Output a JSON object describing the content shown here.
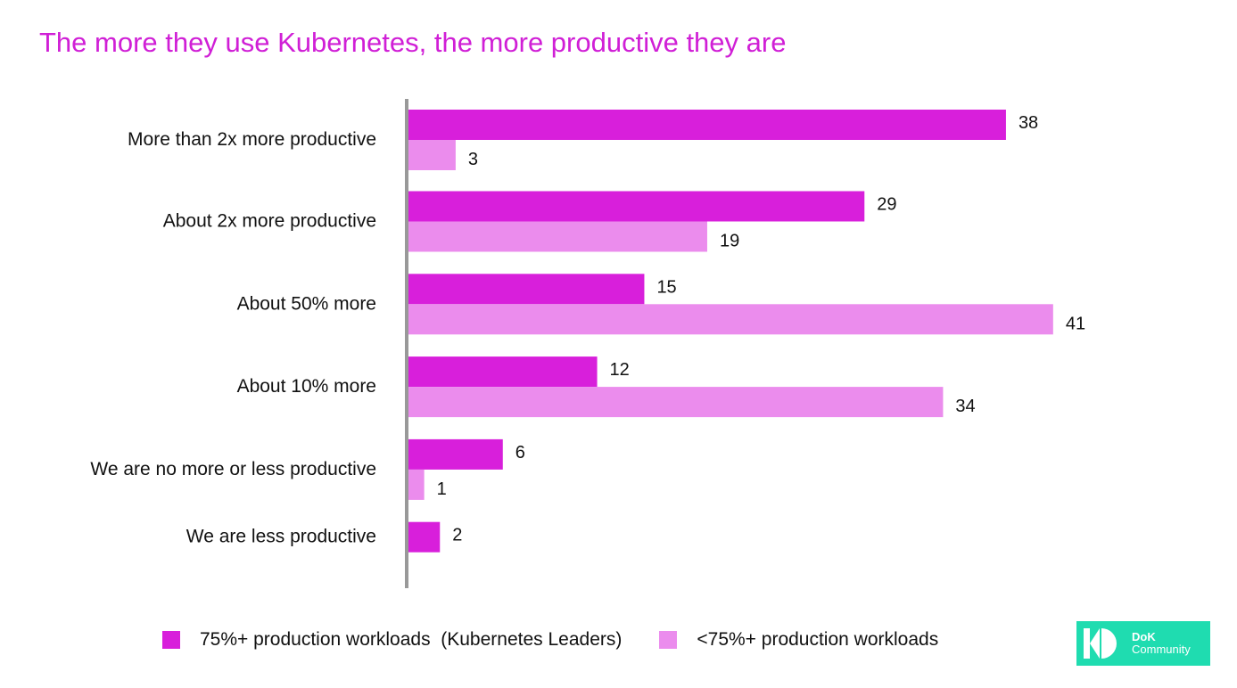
{
  "title": "The more they use Kubernetes, the more productive they are",
  "chart_data": {
    "type": "bar",
    "orientation": "horizontal",
    "title": "The more they use Kubernetes, the more productive they are",
    "categories": [
      "More than 2x more productive",
      "About 2x more productive",
      "About 50% more",
      "About 10% more",
      "We are no more or less productive",
      "We are less productive"
    ],
    "series": [
      {
        "name": "75%+ production workloads  (Kubernetes Leaders)",
        "color": "#d81fdb",
        "values": [
          38,
          29,
          15,
          12,
          6,
          2
        ]
      },
      {
        "name": "<75%+ production workloads",
        "color": "#eb8ced",
        "values": [
          3,
          19,
          41,
          34,
          1,
          null
        ]
      }
    ],
    "xlim": [
      0,
      41
    ],
    "grid": false,
    "legend_position": "bottom"
  },
  "legend": {
    "items": [
      {
        "label": "75%+ production workloads  (Kubernetes Leaders)",
        "color": "#d81fdb"
      },
      {
        "label": "<75%+ production workloads",
        "color": "#eb8ced"
      }
    ]
  },
  "logo": {
    "line1": "DoK",
    "line2": "Community",
    "color": "#1fdcb0"
  }
}
